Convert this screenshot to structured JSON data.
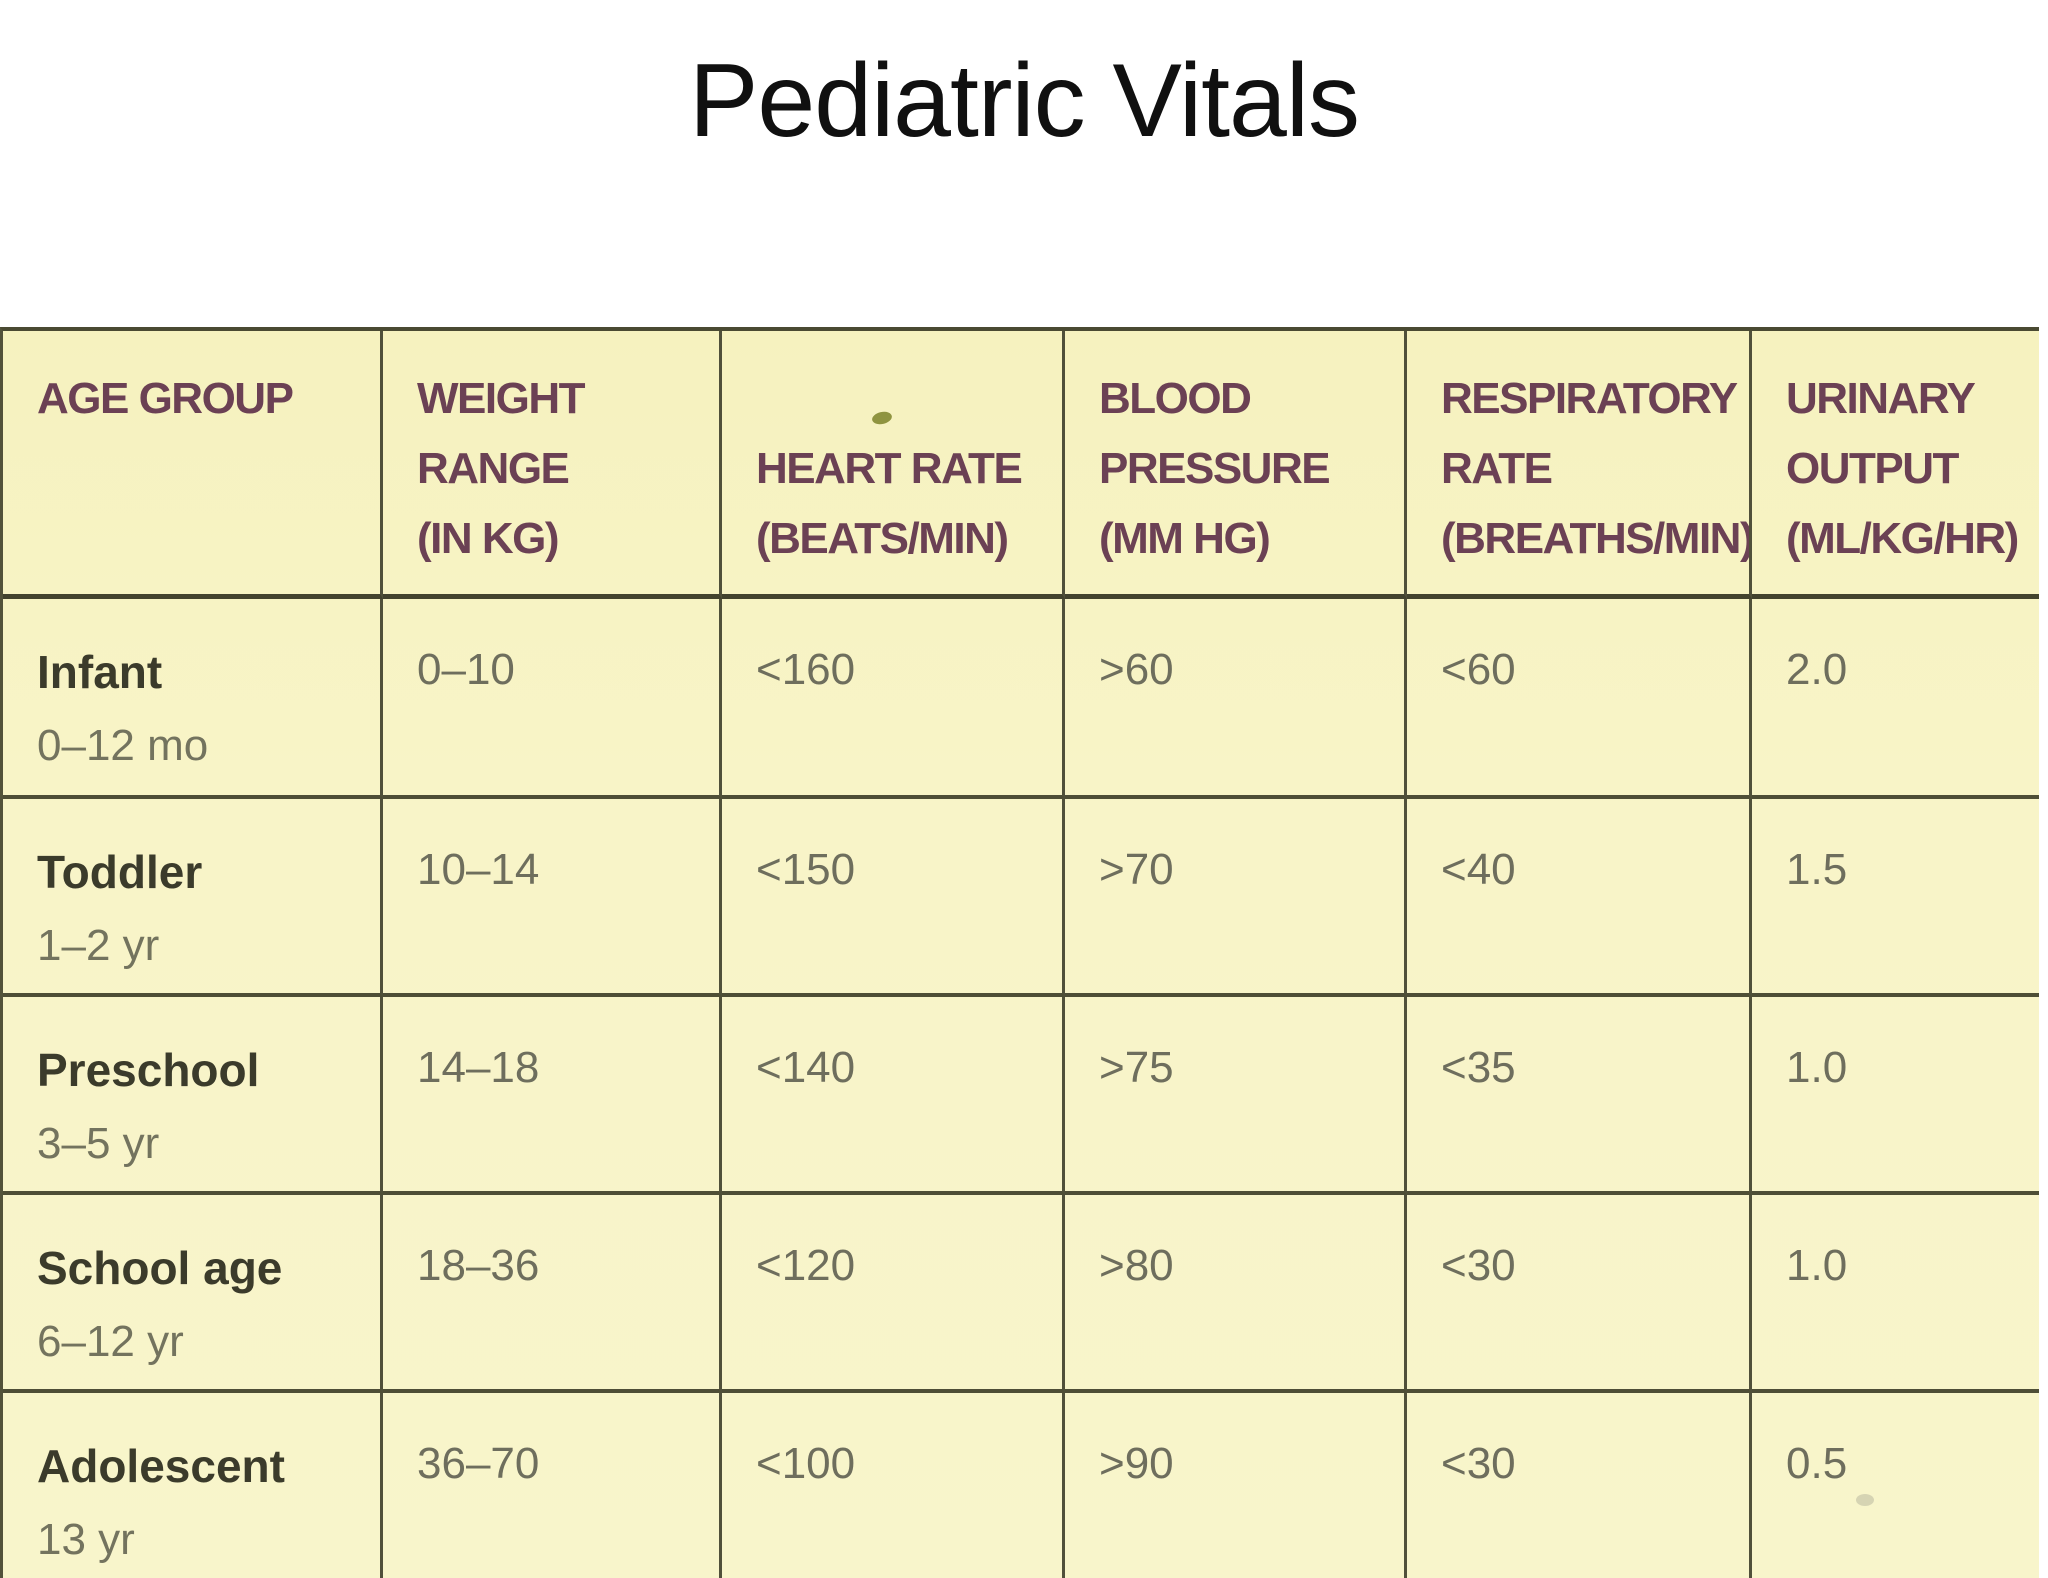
{
  "title": "Pediatric Vitals",
  "table": {
    "headers": [
      {
        "lines": [
          "AGE GROUP"
        ]
      },
      {
        "lines": [
          "WEIGHT",
          "RANGE",
          "(IN KG)"
        ]
      },
      {
        "lines": [
          "HEART RATE",
          "(BEATS/MIN)"
        ]
      },
      {
        "lines": [
          "BLOOD",
          "PRESSURE",
          "(MM HG)"
        ]
      },
      {
        "lines": [
          "RESPIRATORY",
          "RATE",
          "(BREATHS/MIN)"
        ]
      },
      {
        "lines": [
          "URINARY",
          "OUTPUT",
          "(ML/KG/HR)"
        ]
      }
    ],
    "rows": [
      {
        "group": "Infant",
        "age": "0–12 mo",
        "weight_kg": "0–10",
        "heart_rate": "<160",
        "blood_pressure": ">60",
        "respiratory_rate": "<60",
        "urinary_output": "2.0"
      },
      {
        "group": "Toddler",
        "age": "1–2 yr",
        "weight_kg": "10–14",
        "heart_rate": "<150",
        "blood_pressure": ">70",
        "respiratory_rate": "<40",
        "urinary_output": "1.5"
      },
      {
        "group": "Preschool",
        "age": "3–5 yr",
        "weight_kg": "14–18",
        "heart_rate": "<140",
        "blood_pressure": ">75",
        "respiratory_rate": "<35",
        "urinary_output": "1.0"
      },
      {
        "group": "School age",
        "age": "6–12 yr",
        "weight_kg": "18–36",
        "heart_rate": "<120",
        "blood_pressure": ">80",
        "respiratory_rate": "<30",
        "urinary_output": "1.0"
      },
      {
        "group": "Adolescent",
        "age": "13 yr",
        "weight_kg": "36–70",
        "heart_rate": "<100",
        "blood_pressure": ">90",
        "respiratory_rate": "<30",
        "urinary_output": "0.5"
      }
    ]
  },
  "colors": {
    "page_background": "#ffffff",
    "table_background": "#f7f3c4",
    "border": "#4e4e36",
    "header_text": "#6b4154",
    "value_text": "#6e6e5d",
    "group_text": "#3b3b2b",
    "age_subtext": "#73735e",
    "title_text": "#101010"
  }
}
